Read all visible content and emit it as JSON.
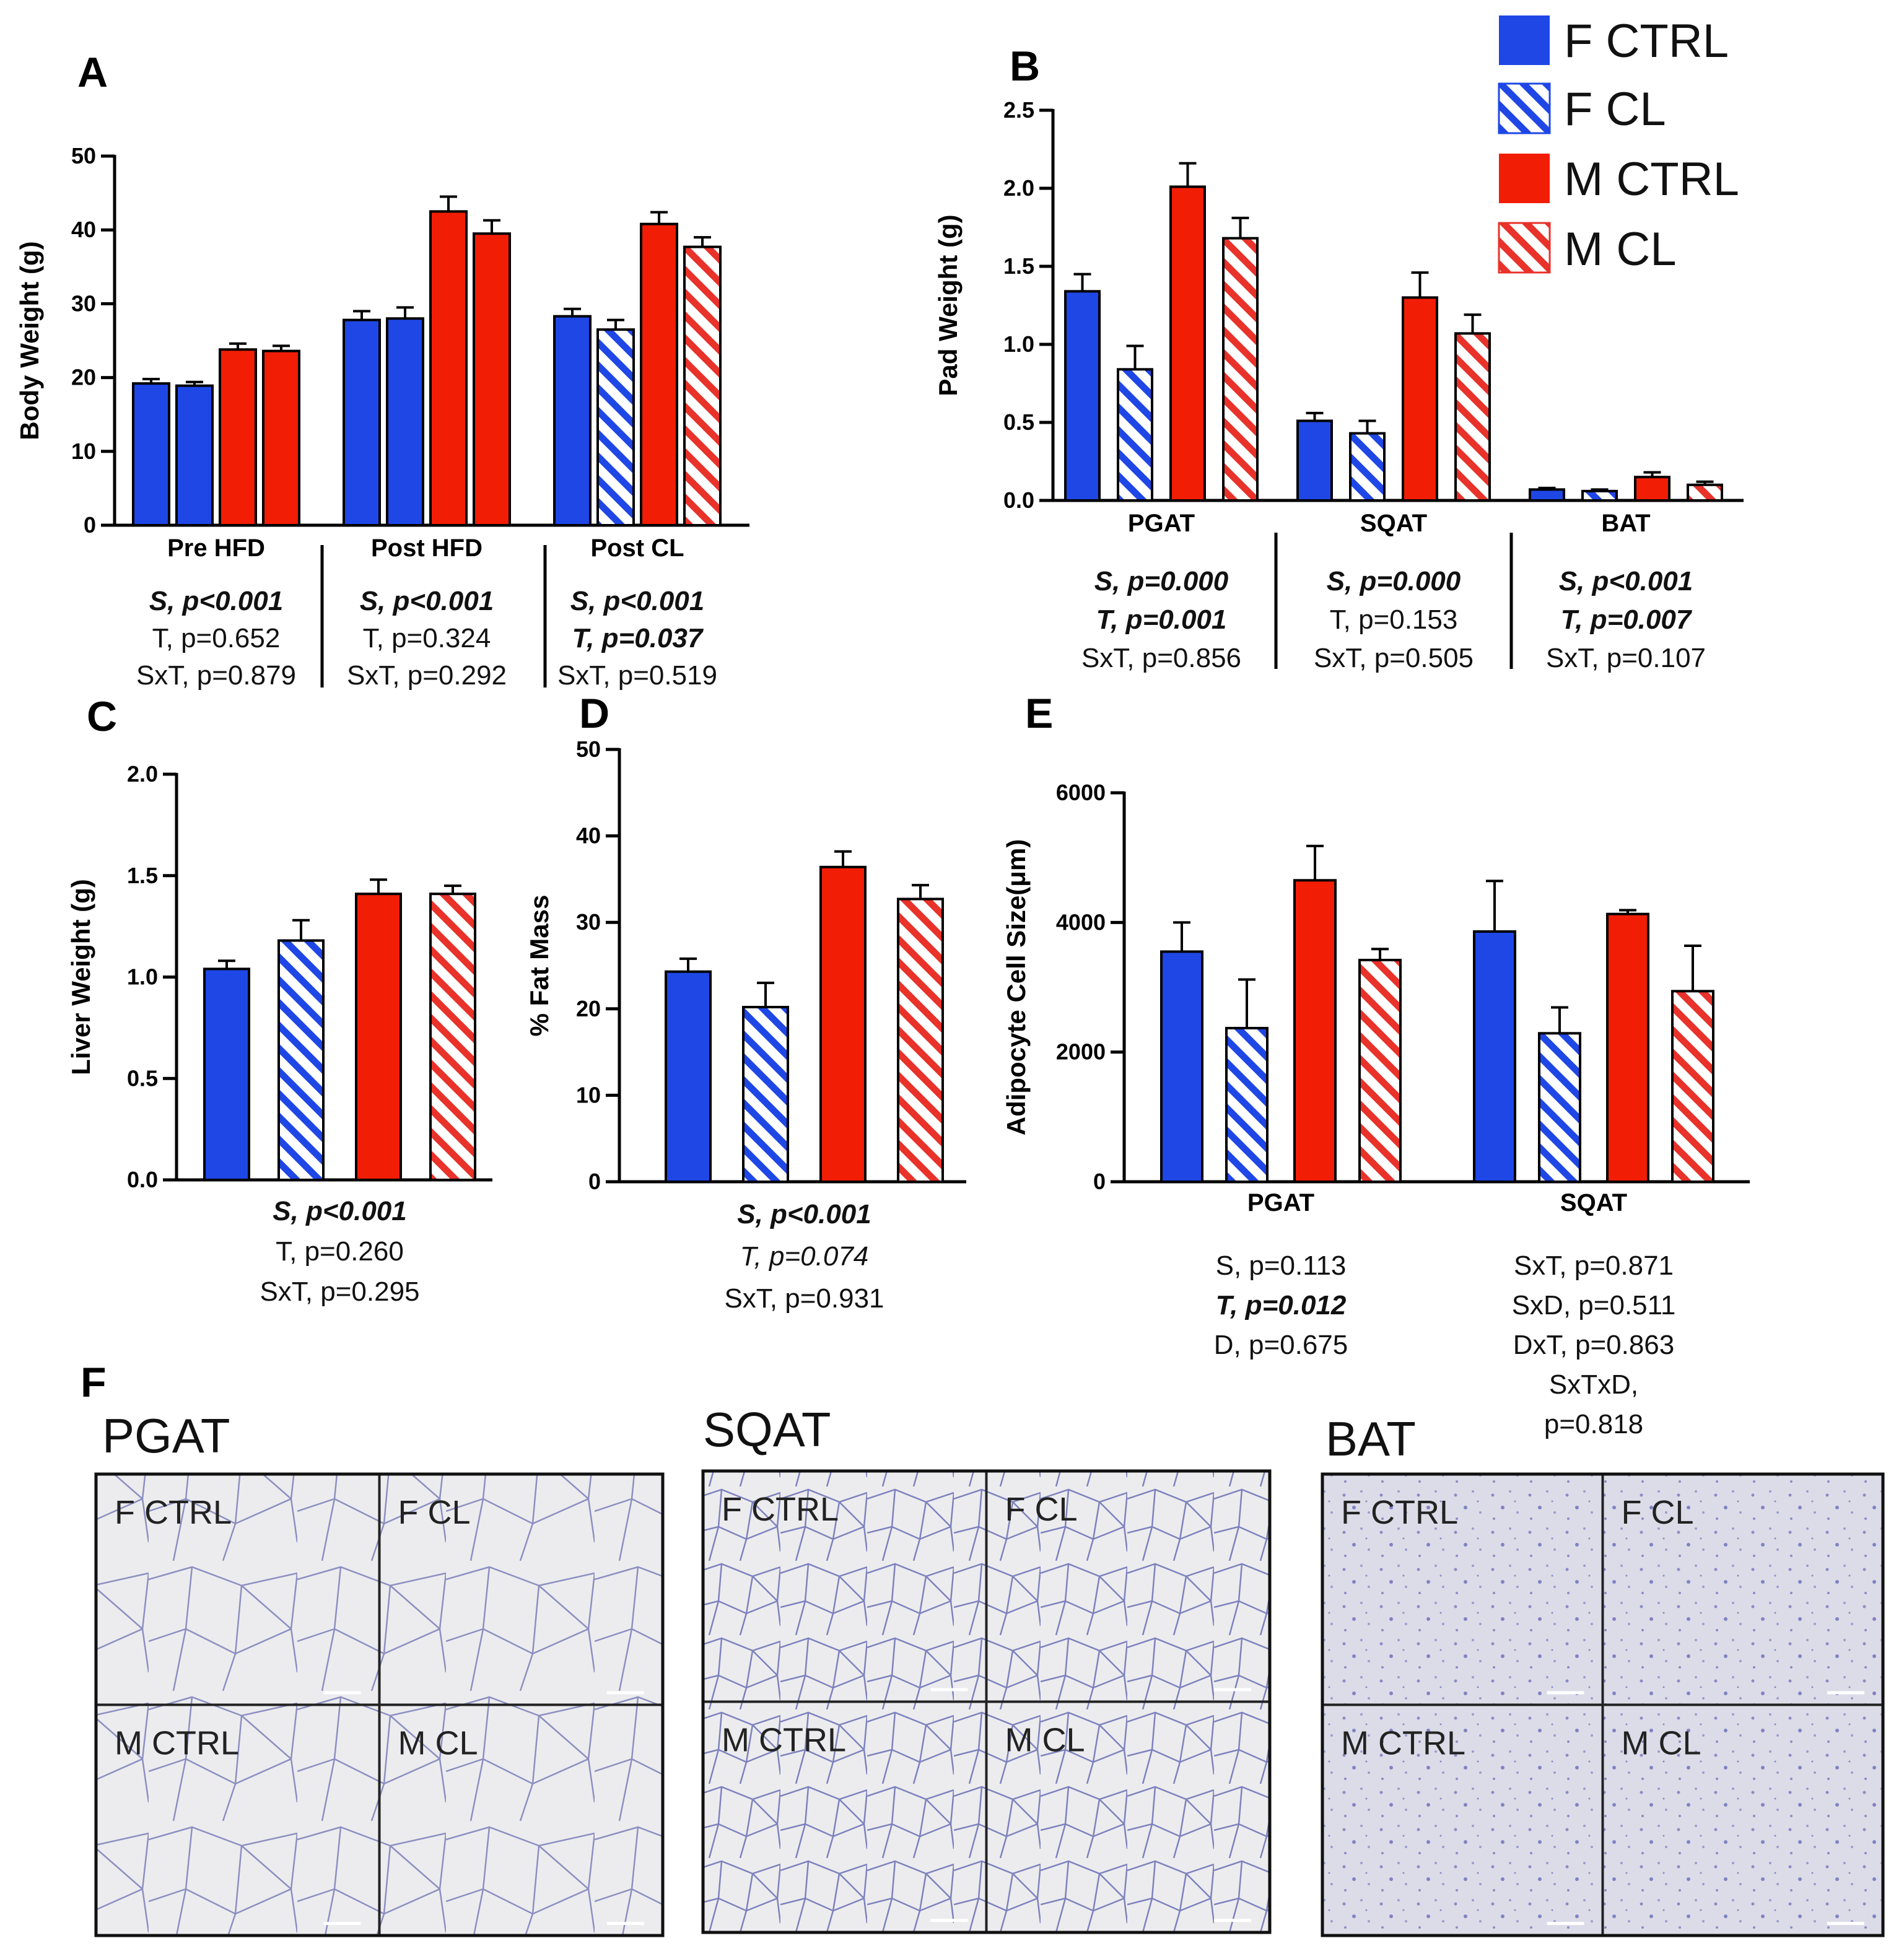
{
  "colors": {
    "blue": "#1f47e6",
    "red": "#f21d05",
    "hatch_blue": "#1f47e6",
    "hatch_red": "#e8322a"
  },
  "legend": [
    {
      "label": "F CTRL",
      "color": "#1f47e6",
      "hatched": false
    },
    {
      "label": "F CL",
      "color": "#1f47e6",
      "hatched": true
    },
    {
      "label": "M CTRL",
      "color": "#f21d05",
      "hatched": false
    },
    {
      "label": "M CL",
      "color": "#f21d05",
      "hatched": true
    }
  ],
  "chart_data": [
    {
      "panel": "A",
      "type": "bar",
      "ylabel": "Body Weight (g)",
      "ylim": [
        0,
        50
      ],
      "yticks": [
        "0",
        "10",
        "20",
        "30",
        "40",
        "50"
      ],
      "groups": [
        {
          "label": "Pre HFD",
          "bars": [
            {
              "group": "F CTRL",
              "value": 19.2,
              "err": 0.6
            },
            {
              "group": "F CL",
              "value": 18.9,
              "err": 0.5,
              "solid": true
            },
            {
              "group": "M CTRL",
              "value": 23.8,
              "err": 0.8
            },
            {
              "group": "M CL",
              "value": 23.6,
              "err": 0.7,
              "solid": true
            }
          ],
          "stats": [
            {
              "text": "S, p<0.001",
              "style": "bi"
            },
            {
              "text": "T, p=0.652",
              "style": "n"
            },
            {
              "text": "SxT, p=0.879",
              "style": "n"
            }
          ]
        },
        {
          "label": "Post HFD",
          "bars": [
            {
              "group": "F CTRL",
              "value": 27.8,
              "err": 1.2
            },
            {
              "group": "F CL",
              "value": 28.0,
              "err": 1.5,
              "solid": true
            },
            {
              "group": "M CTRL",
              "value": 42.5,
              "err": 2.0
            },
            {
              "group": "M CL",
              "value": 39.5,
              "err": 1.8,
              "solid": true
            }
          ],
          "stats": [
            {
              "text": "S, p<0.001",
              "style": "bi"
            },
            {
              "text": "T, p=0.324",
              "style": "n"
            },
            {
              "text": "SxT, p=0.292",
              "style": "n"
            }
          ]
        },
        {
          "label": "Post CL",
          "bars": [
            {
              "group": "F CTRL",
              "value": 28.3,
              "err": 1.0
            },
            {
              "group": "F CL",
              "value": 26.5,
              "err": 1.3
            },
            {
              "group": "M CTRL",
              "value": 40.8,
              "err": 1.6
            },
            {
              "group": "M CL",
              "value": 37.7,
              "err": 1.3
            }
          ],
          "stats": [
            {
              "text": "S, p<0.001",
              "style": "bi"
            },
            {
              "text": "T, p=0.037",
              "style": "bi"
            },
            {
              "text": "SxT, p=0.519",
              "style": "n"
            }
          ]
        }
      ]
    },
    {
      "panel": "B",
      "type": "bar",
      "ylabel": "Pad Weight (g)",
      "ylim": [
        0,
        2.5
      ],
      "yticks": [
        "0.0",
        "0.5",
        "1.0",
        "1.5",
        "2.0",
        "2.5"
      ],
      "groups": [
        {
          "label": "PGAT",
          "bars": [
            {
              "group": "F CTRL",
              "value": 1.34,
              "err": 0.11
            },
            {
              "group": "F CL",
              "value": 0.84,
              "err": 0.15
            },
            {
              "group": "M CTRL",
              "value": 2.01,
              "err": 0.15
            },
            {
              "group": "M CL",
              "value": 1.68,
              "err": 0.13
            }
          ],
          "stats": [
            {
              "text": "S, p=0.000",
              "style": "bi"
            },
            {
              "text": "T, p=0.001",
              "style": "bi"
            },
            {
              "text": "SxT, p=0.856",
              "style": "n"
            }
          ]
        },
        {
          "label": "SQAT",
          "bars": [
            {
              "group": "F CTRL",
              "value": 0.51,
              "err": 0.05
            },
            {
              "group": "F CL",
              "value": 0.43,
              "err": 0.08
            },
            {
              "group": "M CTRL",
              "value": 1.3,
              "err": 0.16
            },
            {
              "group": "M CL",
              "value": 1.07,
              "err": 0.12
            }
          ],
          "stats": [
            {
              "text": "S, p=0.000",
              "style": "bi"
            },
            {
              "text": "T, p=0.153",
              "style": "n"
            },
            {
              "text": "SxT, p=0.505",
              "style": "n"
            }
          ]
        },
        {
          "label": "BAT",
          "bars": [
            {
              "group": "F CTRL",
              "value": 0.07,
              "err": 0.01
            },
            {
              "group": "F CL",
              "value": 0.06,
              "err": 0.01
            },
            {
              "group": "M CTRL",
              "value": 0.15,
              "err": 0.03
            },
            {
              "group": "M CL",
              "value": 0.1,
              "err": 0.02
            }
          ],
          "stats": [
            {
              "text": "S, p<0.001",
              "style": "bi"
            },
            {
              "text": "T, p=0.007",
              "style": "bi"
            },
            {
              "text": "SxT, p=0.107",
              "style": "n"
            }
          ]
        }
      ]
    },
    {
      "panel": "C",
      "type": "bar",
      "ylabel": "Liver Weight (g)",
      "ylim": [
        0,
        2.0
      ],
      "yticks": [
        "0.0",
        "0.5",
        "1.0",
        "1.5",
        "2.0"
      ],
      "groups": [
        {
          "label": "",
          "bars": [
            {
              "group": "F CTRL",
              "value": 1.04,
              "err": 0.04
            },
            {
              "group": "F CL",
              "value": 1.18,
              "err": 0.1
            },
            {
              "group": "M CTRL",
              "value": 1.41,
              "err": 0.07
            },
            {
              "group": "M CL",
              "value": 1.41,
              "err": 0.04
            }
          ],
          "stats": [
            {
              "text": "S, p<0.001",
              "style": "bi"
            },
            {
              "text": "T, p=0.260",
              "style": "n"
            },
            {
              "text": "SxT, p=0.295",
              "style": "n"
            }
          ]
        }
      ]
    },
    {
      "panel": "D",
      "type": "bar",
      "ylabel": "% Fat Mass",
      "ylim": [
        0,
        50
      ],
      "yticks": [
        "0",
        "10",
        "20",
        "30",
        "40",
        "50"
      ],
      "groups": [
        {
          "label": "",
          "bars": [
            {
              "group": "F CTRL",
              "value": 24.3,
              "err": 1.5
            },
            {
              "group": "F CL",
              "value": 20.2,
              "err": 2.8
            },
            {
              "group": "M CTRL",
              "value": 36.4,
              "err": 1.8
            },
            {
              "group": "M CL",
              "value": 32.7,
              "err": 1.6
            }
          ],
          "stats": [
            {
              "text": "S, p<0.001",
              "style": "bi"
            },
            {
              "text": "T, p=0.074",
              "style": "it"
            },
            {
              "text": "SxT, p=0.931",
              "style": "n"
            }
          ]
        }
      ]
    },
    {
      "panel": "E",
      "type": "bar",
      "ylabel": "Adipocyte Cell Size(μm)",
      "ylim": [
        0,
        6000
      ],
      "yticks": [
        "0",
        "2000",
        "4000",
        "6000"
      ],
      "groups": [
        {
          "label": "PGAT",
          "bars": [
            {
              "group": "F CTRL",
              "value": 3550,
              "err": 450
            },
            {
              "group": "F CL",
              "value": 2370,
              "err": 750
            },
            {
              "group": "M CTRL",
              "value": 4650,
              "err": 530
            },
            {
              "group": "M CL",
              "value": 3420,
              "err": 170
            }
          ],
          "stats": [
            {
              "text": "S, p=0.113",
              "style": "n"
            },
            {
              "text": "T, p=0.012",
              "style": "bi"
            },
            {
              "text": "D, p=0.675",
              "style": "n"
            }
          ]
        },
        {
          "label": "SQAT",
          "bars": [
            {
              "group": "F CTRL",
              "value": 3860,
              "err": 780
            },
            {
              "group": "F CL",
              "value": 2290,
              "err": 400
            },
            {
              "group": "M CTRL",
              "value": 4130,
              "err": 60
            },
            {
              "group": "M CL",
              "value": 2940,
              "err": 700
            }
          ],
          "stats": [
            {
              "text": "SxT, p=0.871",
              "style": "n"
            },
            {
              "text": "SxD, p=0.511",
              "style": "n"
            },
            {
              "text": "DxT, p=0.863",
              "style": "n"
            },
            {
              "text": "SxTxD,",
              "style": "n"
            },
            {
              "text": "p=0.818",
              "style": "n"
            }
          ]
        }
      ]
    }
  ],
  "panel_f": {
    "letter": "F",
    "tissues": [
      {
        "title": "PGAT",
        "cells": [
          "F CTRL",
          "F CL",
          "M CTRL",
          "M CL"
        ]
      },
      {
        "title": "SQAT",
        "cells": [
          "F CTRL",
          "F CL",
          "M CTRL",
          "M CL"
        ]
      },
      {
        "title": "BAT",
        "cells": [
          "F CTRL",
          "F CL",
          "M CTRL",
          "M CL"
        ]
      }
    ]
  }
}
